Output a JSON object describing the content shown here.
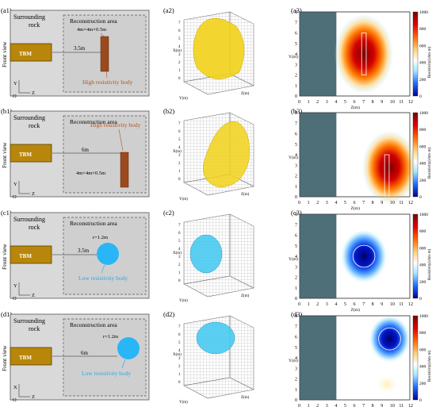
{
  "colorbar": {
    "ticks": [
      "0",
      "200",
      "400",
      "600",
      "800",
      "1000"
    ],
    "label": "Resistivity(ohm·m)",
    "colors": [
      "#00008a",
      "#1f6dff",
      "#a8e8ff",
      "#ffffff",
      "#ffd27a",
      "#ff6a00",
      "#e00000",
      "#7a0000"
    ]
  },
  "colors": {
    "rock": "#d9d9d9",
    "tbm": "#b8860b",
    "high_body": "#9c4a1d",
    "low_body": "#29b6f6",
    "high_label": "#b5541c",
    "low_label": "#29a8e6",
    "slice_bg": "#4e6f78",
    "iso_high": "#f2d21a",
    "iso_low": "#3ec8f0"
  },
  "rows": [
    {
      "labels": [
        "(a1)",
        "(a2)",
        "(a3)"
      ],
      "surrounding": "Surrounding\nrock",
      "recon": "Reconstruction area",
      "front": "Front view",
      "tbm": "TBM",
      "distance": "3.5m",
      "size": "4m×4m×0.5m",
      "body_label": "High resistivity body",
      "body_type": "high",
      "axis_v": "Y",
      "axis_h": "Z",
      "origin": "O",
      "axis3d": {
        "x": "X(m)",
        "y": "Y(m)",
        "z": "Z(m)"
      },
      "slice_x": "Z(m)",
      "slice_y": "Y(m)",
      "slice_xticks": [
        "0",
        "1",
        "2",
        "3",
        "4",
        "5",
        "6",
        "7",
        "8",
        "9",
        "10",
        "11",
        "12"
      ],
      "slice_yticks": [
        "0",
        "1",
        "2",
        "3",
        "4",
        "5",
        "6",
        "7",
        "8"
      ]
    },
    {
      "labels": [
        "(b1)",
        "(b2)",
        "(b3)"
      ],
      "surrounding": "Surrounding\nrock",
      "recon": "Reconstruction area",
      "front": "Front view",
      "tbm": "TBM",
      "distance": "6m",
      "size": "4m×4m×0.5m",
      "body_label": "High resistivity body",
      "body_type": "high",
      "axis_v": "Y",
      "axis_h": "Z",
      "origin": "O",
      "axis3d": {
        "x": "X(m)",
        "y": "Y(m)",
        "z": "Z(m)"
      },
      "slice_x": "Z(m)",
      "slice_y": "Y(m)",
      "slice_xticks": [
        "0",
        "1",
        "2",
        "3",
        "4",
        "5",
        "6",
        "7",
        "8",
        "9",
        "10",
        "11",
        "12"
      ],
      "slice_yticks": [
        "0",
        "1",
        "2",
        "3",
        "4",
        "5",
        "6",
        "7",
        "8"
      ]
    },
    {
      "labels": [
        "(c1)",
        "(c2)",
        "(c3)"
      ],
      "surrounding": "Surrounding\nrock",
      "recon": "Reconstruction area",
      "front": "Front view",
      "tbm": "TBM",
      "distance": "3.5m",
      "size": "r=1.2m",
      "body_label": "Low resistivity body",
      "body_type": "low",
      "axis_v": "Y",
      "axis_h": "Z",
      "origin": "O",
      "axis3d": {
        "x": "X(m)",
        "y": "Y(m)",
        "z": "Z(m)"
      },
      "slice_x": "Z(m)",
      "slice_y": "Y(m)",
      "slice_xticks": [
        "0",
        "1",
        "2",
        "3",
        "4",
        "5",
        "6",
        "7",
        "8",
        "9",
        "10",
        "11",
        "12"
      ],
      "slice_yticks": [
        "0",
        "1",
        "2",
        "3",
        "4",
        "5",
        "6",
        "7",
        "8"
      ]
    },
    {
      "labels": [
        "(d1)",
        "(d2)",
        "(d3)"
      ],
      "surrounding": "Surrounding\nrock",
      "recon": "Reconstruction area",
      "front": "Front view",
      "tbm": "TBM",
      "distance": "6m",
      "size": "r=1.2m",
      "body_label": "Low resistivity body",
      "body_type": "low",
      "axis_v": "X",
      "axis_h": "Z",
      "origin": "O",
      "axis3d": {
        "x": "X(m)",
        "y": "Y(m)",
        "z": "Z(m)"
      },
      "slice_x": "Z(m)",
      "slice_y": "Y(m)",
      "slice_xticks": [
        "0",
        "1",
        "2",
        "3",
        "4",
        "5",
        "6",
        "7",
        "8",
        "9",
        "10",
        "11",
        "12"
      ],
      "slice_yticks": [
        "0",
        "1",
        "2",
        "3",
        "4",
        "5",
        "6",
        "7",
        "8"
      ]
    }
  ]
}
